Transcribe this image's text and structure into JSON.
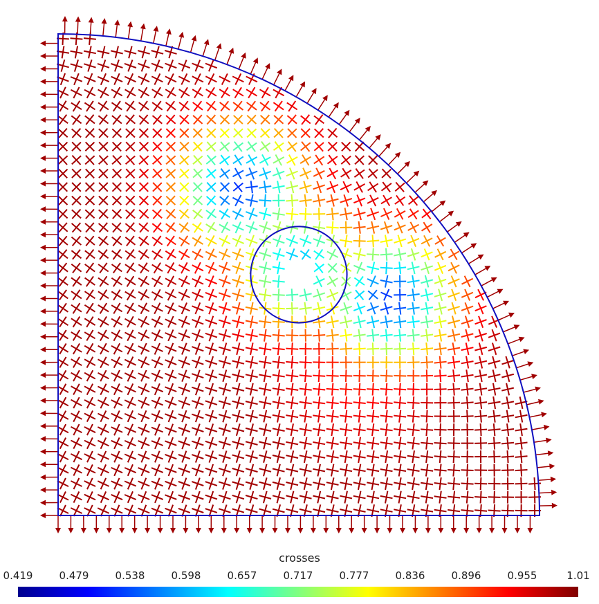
{
  "chart_data": {
    "type": "vector-field",
    "colorbar": {
      "title": "crosses",
      "min": 0.419,
      "max": 1.01,
      "ticks": [
        "0.419",
        "0.479",
        "0.538",
        "0.598",
        "0.657",
        "0.717",
        "0.777",
        "0.836",
        "0.896",
        "0.955",
        "1.01"
      ],
      "colormap": "jet"
    },
    "domain": {
      "shape": "quarter-disk",
      "boundary_color": "#1010c0",
      "hole": "circle",
      "corner_x": 0,
      "corner_y": 0,
      "radius": 1,
      "hole_center": [
        0.5,
        0.5
      ],
      "hole_radius": 0.1
    },
    "singularities": [
      {
        "x": 0.38,
        "y": 0.68,
        "value": 0.52
      },
      {
        "x": 0.69,
        "y": 0.45,
        "value": 0.52
      },
      {
        "x": 0.5,
        "y": 0.52,
        "value": 0.6
      }
    ],
    "arrow_color": "#a00000"
  }
}
